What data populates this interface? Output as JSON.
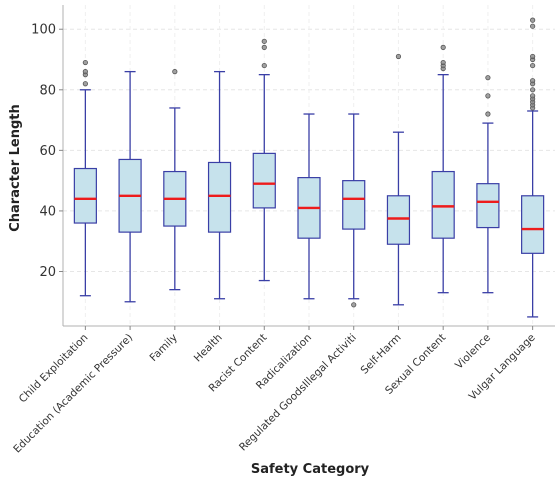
{
  "chart_data": {
    "type": "box",
    "title": "",
    "xlabel": "Safety Category",
    "ylabel": "Character Length",
    "ylim": [
      2,
      108
    ],
    "yticks": [
      20,
      40,
      60,
      80,
      100
    ],
    "grid": true,
    "colors": {
      "box_fill": "#c6e2ec",
      "box_edge": "#3a3fa6",
      "median": "#ee1c1c",
      "outlier": "#555555"
    },
    "categories": [
      "Child Exploitation",
      "Education (Academic Pressure)",
      "Family",
      "Health",
      "Racist Content",
      "Radicalization",
      "Regulated GoodsIllegal Activiti",
      "Self-Harm",
      "Sexual Content",
      "Violence",
      "Vulgar Language"
    ],
    "boxes": [
      {
        "whislo": 12,
        "q1": 36,
        "med": 44,
        "q3": 54,
        "whishi": 80,
        "fliers": [
          82,
          85,
          86,
          89
        ]
      },
      {
        "whislo": 10,
        "q1": 33,
        "med": 45,
        "q3": 57,
        "whishi": 86,
        "fliers": []
      },
      {
        "whislo": 14,
        "q1": 35,
        "med": 44,
        "q3": 53,
        "whishi": 74,
        "fliers": [
          86
        ]
      },
      {
        "whislo": 11,
        "q1": 33,
        "med": 45,
        "q3": 56,
        "whishi": 86,
        "fliers": []
      },
      {
        "whislo": 17,
        "q1": 41,
        "med": 49,
        "q3": 59,
        "whishi": 85,
        "fliers": [
          88,
          94,
          96
        ]
      },
      {
        "whislo": 11,
        "q1": 31,
        "med": 41,
        "q3": 51,
        "whishi": 72,
        "fliers": []
      },
      {
        "whislo": 11,
        "q1": 34,
        "med": 44,
        "q3": 50,
        "whishi": 72,
        "fliers": [
          9
        ]
      },
      {
        "whislo": 9,
        "q1": 29,
        "med": 37.5,
        "q3": 45,
        "whishi": 66,
        "fliers": [
          91
        ]
      },
      {
        "whislo": 13,
        "q1": 31,
        "med": 41.5,
        "q3": 53,
        "whishi": 85,
        "fliers": [
          87,
          88,
          89,
          94
        ]
      },
      {
        "whislo": 13,
        "q1": 34.5,
        "med": 43,
        "q3": 49,
        "whishi": 69,
        "fliers": [
          72,
          78,
          84
        ]
      },
      {
        "whislo": 5,
        "q1": 26,
        "med": 34,
        "q3": 45,
        "whishi": 73,
        "fliers": [
          74,
          75,
          76,
          77,
          78,
          80,
          82,
          83,
          88,
          90,
          91,
          101,
          103
        ]
      }
    ]
  }
}
